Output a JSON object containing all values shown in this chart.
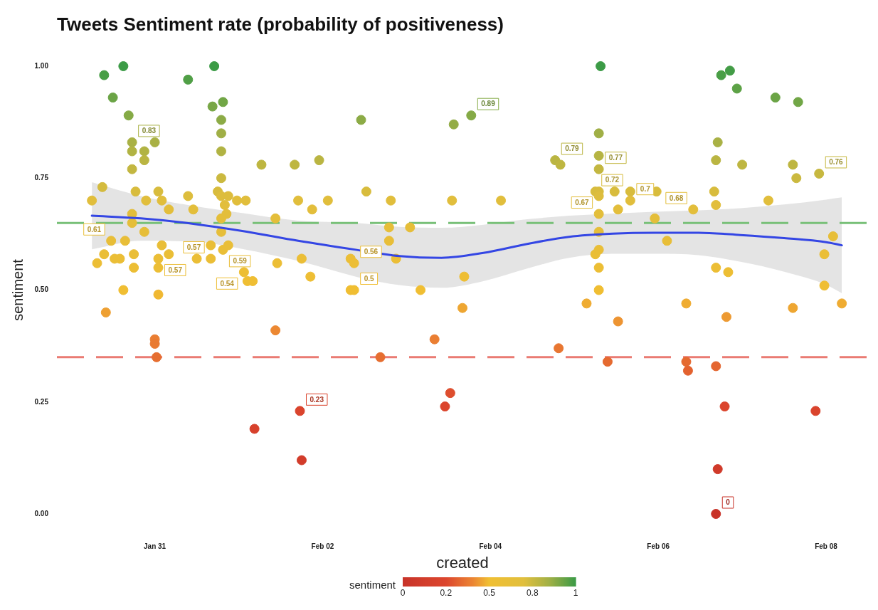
{
  "chart_data": {
    "type": "scatter",
    "title": "Tweets Sentiment rate (probability of positiveness)",
    "xlabel": "created",
    "ylabel": "sentiment",
    "clabel": "sentiment",
    "xlim": [
      "--01-29T20:00",
      "--02-08T12:00"
    ],
    "xticks": [
      {
        "value": "--01-31",
        "label": "Jan 31"
      },
      {
        "value": "--02-02",
        "label": "Feb 02"
      },
      {
        "value": "--02-04",
        "label": "Feb 04"
      },
      {
        "value": "--02-06",
        "label": "Feb 06"
      },
      {
        "value": "--02-08",
        "label": "Feb 08"
      }
    ],
    "ylim": [
      0,
      1
    ],
    "yticks": [
      {
        "value": 0,
        "label": "0.00"
      },
      0.25,
      {
        "value": 0.5,
        "label": "0.50"
      },
      0.75,
      {
        "value": 1,
        "label": "1.00"
      }
    ],
    "clim": [
      0,
      1
    ],
    "cticks": [
      0,
      {
        "value": 0.25,
        "label": "0.2"
      },
      0.5,
      {
        "value": 0.75,
        "label": "0.8"
      },
      1
    ],
    "grid": false,
    "ref_lines": [
      {
        "axis": "y",
        "value": 0.65,
        "color": "#78c078",
        "line_style": "dashed"
      },
      {
        "axis": "y",
        "value": 0.35,
        "color": "#ea7b73",
        "line_style": "dashed"
      }
    ],
    "series": [
      {
        "marker": "circle",
        "x": [
          "--01-30T06:00",
          "--01-30T09:30",
          "--01-30T15:00",
          "--01-30T12:00",
          "--01-30T16:30",
          "--01-30T17:30",
          "--01-30T17:30",
          "--01-30T17:30",
          "--01-30T09:00",
          "--01-30T18:30",
          "--01-30T21:00",
          "--01-30T21:00",
          "--01-31T00:00",
          "--01-31T01:00",
          "--01-31T02:00",
          "--01-30T21:30",
          "--01-31T04:00",
          "--01-31T09:30",
          "--01-31T09:30",
          "--01-31T11:00",
          "--01-31T17:00",
          "--01-31T16:30",
          "--01-31T19:30",
          "--01-31T19:00",
          "--01-31T19:00",
          "--01-31T19:00",
          "--01-31T19:00",
          "--01-31T18:00",
          "--01-31T19:00",
          "--01-31T21:00",
          "--01-31T23:30",
          "--02-01T02:00",
          "--01-31T20:00",
          "--01-31T20:30",
          "--01-31T19:00",
          "--01-30T17:30",
          "--01-30T17:30",
          "--01-30T21:00",
          "--02-01T06:30",
          "--02-01T16:00",
          "--02-01T17:00",
          "--02-01T21:00",
          "--02-01T10:30",
          "--01-30T11:30",
          "--01-30T15:30",
          "--01-31T19:00",
          "--01-31T19:30",
          "--01-31T21:00",
          "--01-31T16:00",
          "--01-30T18:00",
          "--01-31T02:00",
          "--01-31T01:00",
          "--01-31T04:00",
          "--01-31T01:00",
          "--01-30T07:30",
          "--01-30T09:30",
          "--01-30T12:30",
          "--01-30T14:00",
          "--01-30T18:00",
          "--01-31T12:00",
          "--01-31T16:00",
          "--01-30T15:00",
          "--01-31T01:00",
          "--02-01T18:00",
          "--02-01T11:00",
          "--02-01T01:30",
          "--02-01T02:30",
          "--02-01T04:00",
          "--02-01T20:30",
          "--01-30T10:00",
          "--01-31T00:00",
          "--01-31T00:00",
          "--01-31T00:30",
          "--02-01T10:30",
          "--02-01T04:30",
          "--02-01T17:30",
          "--02-01T18:00",
          "--02-02T16:30",
          "--02-03T08:00",
          "--02-03T12:30",
          "--02-03T11:00",
          "--02-03T16:00",
          "--02-02T11:00",
          "--02-03T13:30",
          "--02-03T18:30",
          "--02-01T23:00",
          "--02-04T18:30",
          "--02-04T20:00",
          "--02-02T01:30",
          "--02-02T12:30",
          "--02-02T19:30",
          "--02-03T13:00",
          "--02-04T03:00",
          "--02-02T19:00",
          "--02-03T01:00",
          "--02-02T19:00",
          "--02-02T08:00",
          "--02-02T09:00",
          "--02-02T21:00",
          "--02-02T08:00",
          "--02-02T09:00",
          "--02-03T04:00",
          "--02-03T16:30",
          "--02-05T07:30",
          "--02-06T18:00",
          "--02-06T20:30",
          "--02-06T22:30",
          "--02-07T09:30",
          "--02-07T16:00",
          "--02-05T07:00",
          "--02-06T17:00",
          "--02-05T07:00",
          "--02-05T07:00",
          "--02-06T16:30",
          "--02-07T00:00",
          "--02-07T14:30",
          "--02-07T15:30",
          "--02-07T22:00",
          "--02-05T06:00",
          "--02-05T07:00",
          "--02-05T07:00",
          "--02-05T11:30",
          "--02-05T16:00",
          "--02-05T16:00",
          "--02-05T23:30",
          "--02-05T12:30",
          "--02-06T10:00",
          "--02-06T16:00",
          "--02-06T16:30",
          "--02-07T07:30",
          "--02-05T23:00",
          "--02-05T07:00",
          "--02-06T02:30",
          "--02-08T02:00",
          "--02-05T06:00",
          "--02-05T07:00",
          "--02-05T07:00",
          "--02-05T07:00",
          "--02-05T03:30",
          "--02-06T08:00",
          "--02-06T16:30",
          "--02-06T20:00",
          "--02-07T23:30",
          "--02-07T23:30",
          "--02-07T14:30",
          "--02-08T04:30",
          "--02-06T19:30",
          "--02-05T12:30",
          "--02-04T19:30",
          "--02-05T09:30",
          "--02-06T08:00",
          "--02-06T08:30",
          "--02-06T16:30",
          "--02-06T19:00",
          "--02-07T21:00",
          "--02-06T17:00",
          "--02-06T16:30",
          "--02-05T07:00"
        ],
        "values": [
          0.7,
          0.98,
          1,
          0.93,
          0.89,
          0.83,
          0.81,
          0.77,
          0.73,
          0.72,
          0.81,
          0.79,
          0.83,
          0.72,
          0.7,
          0.7,
          0.68,
          0.97,
          0.71,
          0.68,
          1,
          0.91,
          0.92,
          0.88,
          0.85,
          0.81,
          0.75,
          0.72,
          0.71,
          0.71,
          0.7,
          0.7,
          0.69,
          0.67,
          0.66,
          0.67,
          0.65,
          0.63,
          0.78,
          0.78,
          0.7,
          0.68,
          0.66,
          0.61,
          0.61,
          0.63,
          0.59,
          0.6,
          0.6,
          0.58,
          0.6,
          0.57,
          0.58,
          0.55,
          0.56,
          0.58,
          0.57,
          0.57,
          0.55,
          0.57,
          0.57,
          0.5,
          0.49,
          0.57,
          0.56,
          0.54,
          0.52,
          0.52,
          0.53,
          0.45,
          0.39,
          0.38,
          0.35,
          0.41,
          0.19,
          0.23,
          0.12,
          0.35,
          0.39,
          0.27,
          0.24,
          0.46,
          0.88,
          0.87,
          0.89,
          0.79,
          0.79,
          0.78,
          0.7,
          0.72,
          0.7,
          0.7,
          0.7,
          0.64,
          0.64,
          0.61,
          0.57,
          0.56,
          0.57,
          0.5,
          0.5,
          0.5,
          0.53,
          1,
          0.98,
          0.99,
          0.95,
          0.93,
          0.92,
          0.85,
          0.83,
          0.8,
          0.77,
          0.79,
          0.78,
          0.78,
          0.75,
          0.76,
          0.72,
          0.72,
          0.71,
          0.72,
          0.72,
          0.7,
          0.72,
          0.68,
          0.68,
          0.72,
          0.69,
          0.7,
          0.66,
          0.63,
          0.61,
          0.62,
          0.58,
          0.59,
          0.55,
          0.5,
          0.47,
          0.47,
          0.55,
          0.54,
          0.58,
          0.51,
          0.46,
          0.47,
          0.44,
          0.43,
          0.37,
          0.34,
          0.34,
          0.32,
          0.33,
          0.24,
          0.23,
          0.1,
          0,
          0.67
        ],
        "cvalues": [
          0.7,
          0.98,
          1,
          0.93,
          0.89,
          0.83,
          0.81,
          0.77,
          0.73,
          0.72,
          0.81,
          0.79,
          0.83,
          0.72,
          0.7,
          0.7,
          0.68,
          0.97,
          0.71,
          0.68,
          1,
          0.91,
          0.92,
          0.88,
          0.85,
          0.81,
          0.75,
          0.72,
          0.71,
          0.71,
          0.7,
          0.7,
          0.69,
          0.67,
          0.66,
          0.67,
          0.65,
          0.63,
          0.78,
          0.78,
          0.7,
          0.68,
          0.66,
          0.61,
          0.61,
          0.63,
          0.59,
          0.6,
          0.6,
          0.58,
          0.6,
          0.57,
          0.58,
          0.55,
          0.56,
          0.58,
          0.57,
          0.57,
          0.55,
          0.57,
          0.57,
          0.5,
          0.49,
          0.57,
          0.56,
          0.54,
          0.52,
          0.52,
          0.53,
          0.45,
          0.39,
          0.38,
          0.35,
          0.41,
          0.19,
          0.23,
          0.12,
          0.35,
          0.39,
          0.27,
          0.24,
          0.46,
          0.88,
          0.87,
          0.89,
          0.79,
          0.79,
          0.78,
          0.7,
          0.72,
          0.7,
          0.7,
          0.7,
          0.64,
          0.64,
          0.61,
          0.57,
          0.56,
          0.57,
          0.5,
          0.5,
          0.5,
          0.53,
          1,
          0.98,
          0.99,
          0.95,
          0.93,
          0.92,
          0.85,
          0.83,
          0.8,
          0.77,
          0.79,
          0.78,
          0.78,
          0.75,
          0.76,
          0.72,
          0.72,
          0.71,
          0.72,
          0.72,
          0.7,
          0.72,
          0.68,
          0.68,
          0.72,
          0.69,
          0.7,
          0.66,
          0.63,
          0.61,
          0.62,
          0.58,
          0.59,
          0.55,
          0.5,
          0.47,
          0.47,
          0.55,
          0.54,
          0.58,
          0.51,
          0.46,
          0.47,
          0.44,
          0.43,
          0.37,
          0.34,
          0.34,
          0.32,
          0.33,
          0.24,
          0.23,
          0.1,
          0,
          0.67
        ],
        "colors": [
          "#e1be3c",
          "#499e46",
          "#3c9b46",
          "#6ba446",
          "#85aa46",
          "#a9b145",
          "#b1b343",
          "#c3b741",
          "#d4bb3e",
          "#d8bc3d",
          "#b1b343",
          "#bab542",
          "#a9b145",
          "#d8bc3d",
          "#e1be3c",
          "#e1be3c",
          "#e3be3b",
          "#509f46",
          "#ddbd3d",
          "#e3be3b",
          "#3c9b46",
          "#78a746",
          "#71a646",
          "#8cab46",
          "#a0af46",
          "#b1b343",
          "#cbb93f",
          "#d8bc3d",
          "#ddbd3d",
          "#ddbd3d",
          "#e1be3c",
          "#e1be3c",
          "#e2be3c",
          "#e3be3b",
          "#e4be3a",
          "#e3be3b",
          "#e5be3a",
          "#e6be39",
          "#beb641",
          "#beb641",
          "#e1be3c",
          "#e3be3b",
          "#e4be3a",
          "#e8be38",
          "#e8be38",
          "#e6be39",
          "#e9be37",
          "#e9be37",
          "#e9be37",
          "#eabe36",
          "#e9be37",
          "#ebbe36",
          "#eabe36",
          "#ecbe35",
          "#ecbe35",
          "#eabe36",
          "#ebbe36",
          "#ebbe36",
          "#ecbe35",
          "#ebbe36",
          "#ebbe36",
          "#f0be32",
          "#f0b832",
          "#ebbe36",
          "#ecbe35",
          "#edbe34",
          "#efbe33",
          "#efbe33",
          "#eebe34",
          "#eea032",
          "#ea7e32",
          "#e97a31",
          "#e66e30",
          "#ec8832",
          "#d7412c",
          "#da442d",
          "#d23c2a",
          "#e66e30",
          "#ea7e32",
          "#de4e2e",
          "#db452d",
          "#eea632",
          "#8cab46",
          "#93ac46",
          "#85aa46",
          "#bab542",
          "#bab542",
          "#beb641",
          "#e1be3c",
          "#d8bc3d",
          "#e1be3c",
          "#e1be3c",
          "#e1be3c",
          "#e6be39",
          "#e6be39",
          "#e8be38",
          "#ebbe36",
          "#ecbe35",
          "#ebbe36",
          "#f0be32",
          "#f0be32",
          "#f0be32",
          "#eebe34",
          "#3c9b46",
          "#499e46",
          "#439c46",
          "#5da246",
          "#6ba446",
          "#71a646",
          "#a0af46",
          "#a9b145",
          "#b6b443",
          "#c3b741",
          "#bab542",
          "#beb641",
          "#beb641",
          "#cbb93f",
          "#c7b840",
          "#d8bc3d",
          "#d8bc3d",
          "#ddbd3d",
          "#d8bc3d",
          "#d8bc3d",
          "#e1be3c",
          "#d8bc3d",
          "#e3be3b",
          "#e3be3b",
          "#d8bc3d",
          "#e2be3c",
          "#e1be3c",
          "#e4be3a",
          "#e6be39",
          "#e8be38",
          "#e7be38",
          "#eabe36",
          "#e9be37",
          "#ecbe35",
          "#f0be32",
          "#efac32",
          "#efac32",
          "#ecbe35",
          "#edbe34",
          "#eabe36",
          "#efbe33",
          "#eea632",
          "#efac32",
          "#ed9a32",
          "#ed9432",
          "#e87631",
          "#e56a30",
          "#e56a30",
          "#e3622f",
          "#e46630",
          "#db452d",
          "#da442d",
          "#d03a2a",
          "#c83228",
          "#e3be3b"
        ],
        "value_labels": [
          null,
          null,
          null,
          null,
          null,
          "0.83",
          null,
          null,
          null,
          null,
          null,
          null,
          null,
          null,
          null,
          null,
          null,
          null,
          null,
          null,
          null,
          null,
          null,
          null,
          null,
          null,
          null,
          null,
          null,
          null,
          null,
          null,
          null,
          null,
          null,
          null,
          null,
          null,
          null,
          null,
          null,
          null,
          null,
          "0.61",
          null,
          null,
          "0.59",
          null,
          null,
          null,
          null,
          "0.57",
          null,
          null,
          null,
          null,
          null,
          null,
          null,
          null,
          "0.57",
          null,
          null,
          null,
          null,
          "0.54",
          null,
          null,
          null,
          null,
          null,
          null,
          null,
          null,
          null,
          "0.23",
          null,
          null,
          null,
          null,
          null,
          null,
          null,
          null,
          "0.89",
          null,
          "0.79",
          null,
          null,
          null,
          null,
          null,
          null,
          null,
          null,
          null,
          null,
          "0.56",
          null,
          null,
          "0.5",
          null,
          null,
          null,
          null,
          null,
          null,
          null,
          null,
          null,
          null,
          null,
          "0.77",
          null,
          null,
          null,
          null,
          "0.76",
          "0.72",
          null,
          null,
          null,
          null,
          "0.7",
          null,
          null,
          "0.68",
          null,
          null,
          null,
          null,
          null,
          null,
          null,
          null,
          null,
          null,
          null,
          null,
          null,
          null,
          null,
          null,
          null,
          null,
          null,
          null,
          null,
          null,
          null,
          null,
          null,
          null,
          null,
          null,
          null,
          "0",
          "0.67"
        ]
      },
      {
        "type": "line",
        "color": "#3446e4",
        "x": [
          "--01-30T06:00",
          "--01-30T20:00",
          "--01-31T11:00",
          "--02-01T01:00",
          "--02-01T17:00",
          "--02-02T09:30",
          "--02-02T22:00",
          "--02-03T10:00",
          "--02-03T22:00",
          "--02-04T10:30",
          "--02-04T22:30",
          "--02-05T11:00",
          "--02-05T23:00",
          "--02-06T11:30",
          "--02-06T23:30",
          "--02-07T12:00",
          "--02-08T00:00",
          "--02-08T04:30"
        ],
        "values": [
          0.666,
          0.66,
          0.648,
          0.632,
          0.61,
          0.59,
          0.576,
          0.572,
          0.583,
          0.603,
          0.619,
          0.626,
          0.628,
          0.628,
          0.623,
          0.616,
          0.607,
          0.6
        ],
        "lower": [
          0.591,
          0.61,
          0.608,
          0.592,
          0.565,
          0.53,
          0.511,
          0.505,
          0.52,
          0.548,
          0.572,
          0.581,
          0.581,
          0.578,
          0.563,
          0.541,
          0.512,
          0.493
        ],
        "upper": [
          0.741,
          0.71,
          0.688,
          0.672,
          0.655,
          0.65,
          0.641,
          0.639,
          0.646,
          0.658,
          0.666,
          0.671,
          0.675,
          0.678,
          0.683,
          0.691,
          0.702,
          0.707
        ]
      }
    ]
  }
}
